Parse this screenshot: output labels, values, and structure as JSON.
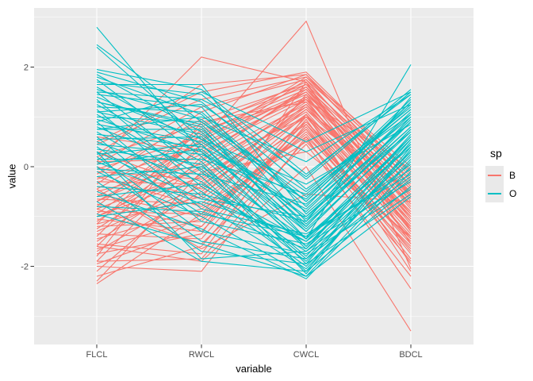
{
  "chart_data": {
    "type": "line",
    "subtype": "parallel-coordinates",
    "title": "",
    "xlabel": "variable",
    "ylabel": "value",
    "categories": [
      "FLCL",
      "RWCL",
      "CWCL",
      "BDCL"
    ],
    "yticks": [
      -2,
      0,
      2
    ],
    "yminor": [
      -3,
      -1,
      1,
      3
    ],
    "ylim": [
      -3.6,
      3.2
    ],
    "grid": true,
    "legend_position": "right",
    "panel_bg": "#EBEBEB",
    "grid_color": "#FFFFFF",
    "axis_text_color": "#4D4D4D",
    "tick_color": "#333333",
    "legend": {
      "title": "sp",
      "entries": [
        {
          "label": "B",
          "color": "#F8766D"
        },
        {
          "label": "O",
          "color": "#00BFC4"
        }
      ]
    },
    "series": [
      {
        "name": "B",
        "color": "#F8766D",
        "lines": [
          [
            -2.35,
            -0.95,
            1.45,
            -1.25
          ],
          [
            -2.2,
            -1.6,
            0.85,
            -1.7
          ],
          [
            -2.1,
            -0.3,
            1.2,
            -0.9
          ],
          [
            -2.0,
            -2.1,
            0.6,
            -2.45
          ],
          [
            -1.95,
            -1.2,
            1.0,
            -1.45
          ],
          [
            -1.9,
            0.2,
            1.55,
            -0.75
          ],
          [
            -1.6,
            -1.9,
            0.0,
            -3.3
          ],
          [
            -1.8,
            0.9,
            1.3,
            -1.1
          ],
          [
            -1.75,
            -1.35,
            1.7,
            -1.55
          ],
          [
            -1.7,
            -0.5,
            1.15,
            -0.55
          ],
          [
            -1.65,
            -1.05,
            0.75,
            -1.85
          ],
          [
            -1.6,
            0.45,
            1.5,
            -0.95
          ],
          [
            -1.55,
            -1.75,
            1.05,
            -2.1
          ],
          [
            -1.5,
            -0.15,
            1.35,
            -1.3
          ],
          [
            -1.45,
            -0.85,
            0.5,
            -1.6
          ],
          [
            -1.4,
            0.65,
            1.65,
            -0.7
          ],
          [
            -1.35,
            -1.45,
            0.95,
            -1.95
          ],
          [
            -1.3,
            -0.4,
            1.25,
            -1.15
          ],
          [
            -1.25,
            0.1,
            1.6,
            -0.85
          ],
          [
            -1.2,
            -1.1,
            0.7,
            -1.5
          ],
          [
            -1.15,
            -0.6,
            1.4,
            -1.05
          ],
          [
            -1.1,
            0.35,
            1.75,
            -0.6
          ],
          [
            -1.05,
            -1.3,
            0.8,
            -1.75
          ],
          [
            -1.0,
            -0.2,
            1.1,
            -1.2
          ],
          [
            -0.95,
            0.55,
            1.45,
            -0.5
          ],
          [
            -0.9,
            -0.95,
            0.65,
            -1.65
          ],
          [
            -0.85,
            -0.05,
            1.3,
            -1.0
          ],
          [
            -0.8,
            0.8,
            1.7,
            -0.4
          ],
          [
            -0.75,
            -1.2,
            0.9,
            -1.4
          ],
          [
            -0.7,
            0.25,
            1.5,
            -0.8
          ],
          [
            -0.65,
            -0.75,
            1.05,
            -1.35
          ],
          [
            -0.6,
            0.5,
            1.8,
            -0.3
          ],
          [
            -0.55,
            -1.0,
            0.75,
            -1.55
          ],
          [
            -0.5,
            0.05,
            1.2,
            -0.95
          ],
          [
            -0.45,
            0.7,
            1.55,
            -0.45
          ],
          [
            -0.4,
            -0.55,
            0.85,
            -1.25
          ],
          [
            -0.35,
            1.1,
            1.85,
            -0.2
          ],
          [
            -0.3,
            -0.35,
            1.0,
            -1.1
          ],
          [
            -0.25,
            0.4,
            1.4,
            -0.65
          ],
          [
            -0.2,
            -0.8,
            0.6,
            -1.45
          ],
          [
            -0.15,
            0.95,
            1.65,
            -0.25
          ],
          [
            -0.1,
            -0.25,
            1.15,
            -0.9
          ],
          [
            -0.05,
            0.6,
            1.5,
            -0.55
          ],
          [
            0.0,
            -0.65,
            0.9,
            -1.2
          ],
          [
            0.05,
            1.2,
            1.75,
            -0.1
          ],
          [
            0.1,
            0.15,
            1.25,
            -0.75
          ],
          [
            0.2,
            0.85,
            1.6,
            -0.35
          ],
          [
            0.3,
            -0.45,
            1.05,
            -1.0
          ],
          [
            0.45,
            1.35,
            1.8,
            0.0
          ],
          [
            0.6,
            0.3,
            1.35,
            -0.6
          ],
          [
            -0.7,
            0.5,
            2.92,
            -2.05
          ],
          [
            0.1,
            2.2,
            1.7,
            -1.3
          ],
          [
            -0.85,
            -1.55,
            0.45,
            -2.2
          ],
          [
            0.5,
            1.5,
            1.9,
            -0.15
          ],
          [
            -1.9,
            -1.85,
            0.55,
            -1.9
          ],
          [
            -1.15,
            0.75,
            1.35,
            -0.05
          ],
          [
            -2.3,
            -0.1,
            0.3,
            -1.4
          ],
          [
            -0.45,
            -1.65,
            -0.55,
            -0.7
          ],
          [
            0.25,
            1.65,
            1.85,
            -0.4
          ],
          [
            -1.0,
            0.0,
            1.0,
            -0.5
          ]
        ]
      },
      {
        "name": "O",
        "color": "#00BFC4",
        "lines": [
          [
            1.9,
            1.3,
            -0.45,
            1.05
          ],
          [
            1.85,
            0.7,
            -1.3,
            0.75
          ],
          [
            1.8,
            1.05,
            -0.8,
            1.3
          ],
          [
            1.75,
            0.2,
            -1.6,
            0.45
          ],
          [
            1.7,
            1.45,
            -0.25,
            1.5
          ],
          [
            1.65,
            1.65,
            -0.95,
            0.9
          ],
          [
            1.6,
            0.45,
            -1.45,
            0.6
          ],
          [
            1.55,
            0.95,
            -0.6,
            1.15
          ],
          [
            1.5,
            -0.1,
            -1.85,
            0.3
          ],
          [
            1.45,
            1.2,
            -1.1,
            1.4
          ],
          [
            1.4,
            0.55,
            -0.35,
            0.85
          ],
          [
            1.35,
            -0.4,
            -1.7,
            0.2
          ],
          [
            1.3,
            0.85,
            -1.2,
            1.0
          ],
          [
            1.25,
            0.1,
            -1.95,
            0.5
          ],
          [
            1.2,
            1.1,
            -0.7,
            1.25
          ],
          [
            1.15,
            -0.6,
            -1.5,
            0.05
          ],
          [
            1.1,
            0.65,
            -1.05,
            0.95
          ],
          [
            1.05,
            -0.2,
            -2.1,
            0.4
          ],
          [
            1.0,
            0.9,
            -0.5,
            1.2
          ],
          [
            0.95,
            0.3,
            -1.65,
            0.65
          ],
          [
            0.9,
            -0.85,
            -1.35,
            -0.15
          ],
          [
            0.85,
            0.5,
            -0.9,
            1.1
          ],
          [
            0.8,
            -0.05,
            -1.8,
            0.55
          ],
          [
            0.75,
            0.75,
            -1.15,
            0.8
          ],
          [
            0.7,
            -0.5,
            -2.0,
            0.1
          ],
          [
            0.65,
            0.4,
            -0.65,
            1.35
          ],
          [
            0.6,
            -1.1,
            -1.55,
            -0.3
          ],
          [
            0.55,
            0.6,
            -1.25,
            0.7
          ],
          [
            0.5,
            -0.3,
            -1.9,
            0.25
          ],
          [
            0.45,
            0.25,
            -0.85,
            1.05
          ],
          [
            0.4,
            -0.95,
            -1.4,
            -0.05
          ],
          [
            0.35,
            0.05,
            -2.15,
            0.35
          ],
          [
            0.3,
            -0.65,
            -1.0,
            0.9
          ],
          [
            0.25,
            0.45,
            -1.6,
            0.6
          ],
          [
            0.2,
            -1.3,
            -1.75,
            -0.45
          ],
          [
            0.15,
            0.15,
            -0.55,
            1.15
          ],
          [
            0.1,
            -0.75,
            -2.05,
            0.15
          ],
          [
            0.05,
            0.35,
            -1.3,
            0.75
          ],
          [
            0.0,
            -1.5,
            -1.85,
            -0.25
          ],
          [
            -0.05,
            -0.15,
            -0.75,
            1.0
          ],
          [
            -0.1,
            -1.0,
            -2.2,
            0.0
          ],
          [
            -0.2,
            0.0,
            -1.45,
            0.45
          ],
          [
            -0.3,
            -1.7,
            -1.95,
            -0.55
          ],
          [
            -0.4,
            -0.55,
            -1.1,
            0.8
          ],
          [
            -0.5,
            -1.25,
            -2.25,
            -0.1
          ],
          [
            -0.6,
            -0.35,
            -1.5,
            0.55
          ],
          [
            -0.7,
            -1.9,
            -2.1,
            -0.4
          ],
          [
            -0.8,
            -0.9,
            -1.65,
            0.3
          ],
          [
            -0.95,
            -1.55,
            -2.2,
            -0.6
          ],
          [
            1.95,
            1.55,
            -0.15,
            1.45
          ],
          [
            2.8,
            0.3,
            -1.2,
            0.9
          ],
          [
            2.45,
            0.9,
            -0.7,
            1.3
          ],
          [
            2.4,
            0.55,
            -1.0,
            0.7
          ],
          [
            1.3,
            0.8,
            -1.45,
            2.05
          ],
          [
            -1.0,
            -0.7,
            -1.4,
            0.4
          ],
          [
            0.9,
            1.5,
            0.5,
            1.5
          ],
          [
            1.5,
            1.35,
            0.3,
            1.25
          ],
          [
            0.3,
            -1.85,
            -1.7,
            -0.2
          ],
          [
            1.1,
            1.25,
            -0.2,
            1.55
          ],
          [
            0.75,
            1.0,
            0.1,
            1.45
          ]
        ]
      }
    ]
  }
}
